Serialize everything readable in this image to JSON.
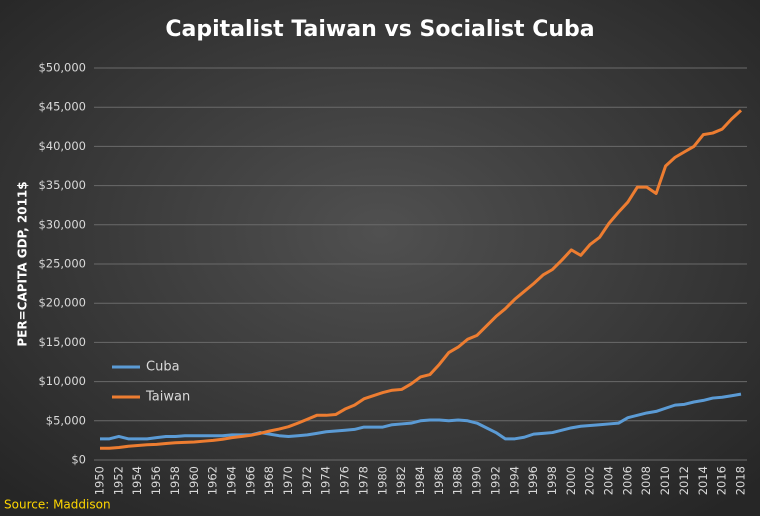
{
  "chart_data": {
    "type": "line",
    "title": "Capitalist Taiwan vs Socialist Cuba",
    "y_label": "PER=CAPITA GDP, 2011$",
    "source": "Source: Maddison",
    "x": [
      1950,
      1951,
      1952,
      1953,
      1954,
      1955,
      1956,
      1957,
      1958,
      1959,
      1960,
      1961,
      1962,
      1963,
      1964,
      1965,
      1966,
      1967,
      1968,
      1969,
      1970,
      1971,
      1972,
      1973,
      1974,
      1975,
      1976,
      1977,
      1978,
      1979,
      1980,
      1981,
      1982,
      1983,
      1984,
      1985,
      1986,
      1987,
      1988,
      1989,
      1990,
      1991,
      1992,
      1993,
      1994,
      1995,
      1996,
      1997,
      1998,
      1999,
      2000,
      2001,
      2002,
      2003,
      2004,
      2005,
      2006,
      2007,
      2008,
      2009,
      2010,
      2011,
      2012,
      2013,
      2014,
      2015,
      2016,
      2017,
      2018
    ],
    "series": [
      {
        "name": "Cuba",
        "color": "#5b9bd5",
        "values": [
          2700,
          2700,
          3000,
          2700,
          2700,
          2700,
          2850,
          3000,
          3000,
          3100,
          3100,
          3100,
          3100,
          3100,
          3200,
          3200,
          3200,
          3500,
          3300,
          3100,
          3000,
          3100,
          3200,
          3400,
          3600,
          3700,
          3800,
          3900,
          4200,
          4200,
          4200,
          4500,
          4600,
          4700,
          5000,
          5100,
          5100,
          5000,
          5100,
          5000,
          4700,
          4100,
          3500,
          2700,
          2700,
          2900,
          3300,
          3400,
          3500,
          3800,
          4100,
          4300,
          4400,
          4500,
          4600,
          4700,
          5400,
          5700,
          6000,
          6200,
          6600,
          7000,
          7100,
          7400,
          7600,
          7900,
          8000,
          8200,
          8400
        ]
      },
      {
        "name": "Taiwan",
        "color": "#ed7d31",
        "values": [
          1500,
          1500,
          1600,
          1750,
          1850,
          1950,
          2000,
          2100,
          2200,
          2250,
          2300,
          2400,
          2500,
          2650,
          2850,
          3000,
          3150,
          3400,
          3700,
          3950,
          4250,
          4700,
          5200,
          5700,
          5700,
          5800,
          6500,
          7000,
          7800,
          8200,
          8600,
          8900,
          9000,
          9700,
          10600,
          10900,
          12200,
          13700,
          14400,
          15400,
          15900,
          17100,
          18300,
          19300,
          20500,
          21500,
          22500,
          23600,
          24300,
          25500,
          26800,
          26100,
          27500,
          28400,
          30200,
          31600,
          32900,
          34800,
          34800,
          34000,
          37500,
          38600,
          39300,
          40000,
          41500,
          41700,
          42200,
          43500,
          44600
        ]
      }
    ],
    "xlim": [
      1950,
      2018
    ],
    "xticks": [
      1950,
      1952,
      1954,
      1956,
      1958,
      1960,
      1962,
      1964,
      1966,
      1968,
      1970,
      1972,
      1974,
      1976,
      1978,
      1980,
      1982,
      1984,
      1986,
      1988,
      1990,
      1992,
      1994,
      1996,
      1998,
      2000,
      2002,
      2004,
      2006,
      2008,
      2010,
      2012,
      2014,
      2016,
      2018
    ],
    "ylim": [
      0,
      50000
    ],
    "yticks": [
      {
        "value": 0,
        "label": "$0"
      },
      {
        "value": 5000,
        "label": "$5,000"
      },
      {
        "value": 10000,
        "label": "$10,000"
      },
      {
        "value": 15000,
        "label": "$15,000"
      },
      {
        "value": 20000,
        "label": "$20,000"
      },
      {
        "value": 25000,
        "label": "$25,000"
      },
      {
        "value": 30000,
        "label": "$30,000"
      },
      {
        "value": 35000,
        "label": "$35,000"
      },
      {
        "value": 40000,
        "label": "$40,000"
      },
      {
        "value": 45000,
        "label": "$45,000"
      },
      {
        "value": 50000,
        "label": "$50,000"
      }
    ],
    "grid": true
  }
}
